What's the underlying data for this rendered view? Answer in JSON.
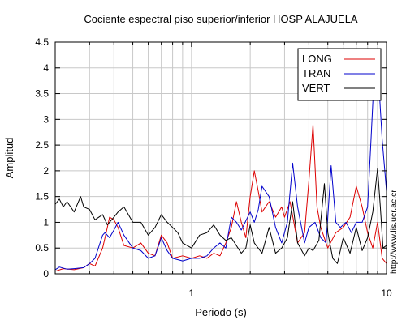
{
  "chart_data": {
    "type": "line",
    "title": "Cociente espectral piso superior/inferior  HOSP ALAJUELA",
    "xlabel": "Periodo (s)",
    "ylabel": "Amplitud",
    "x_scale": "log",
    "xlim": [
      0.2,
      10
    ],
    "ylim": [
      0,
      4.5
    ],
    "x_tick_labels": [
      {
        "value": 1,
        "label": "1"
      },
      {
        "value": 10,
        "label": "10"
      }
    ],
    "y_ticks": [
      "0",
      "0.5",
      "1",
      "1.5",
      "2",
      "2.5",
      "3",
      "3.5",
      "4",
      "4.5"
    ],
    "grid": true,
    "legend_position": "top-right",
    "watermark": "http://www.lis.ucr.ac.cr",
    "series": [
      {
        "name": "LONG",
        "color": "#dd0000",
        "points": [
          [
            0.2,
            0.05
          ],
          [
            0.22,
            0.1
          ],
          [
            0.25,
            0.08
          ],
          [
            0.28,
            0.12
          ],
          [
            0.3,
            0.2
          ],
          [
            0.32,
            0.15
          ],
          [
            0.35,
            0.5
          ],
          [
            0.37,
            0.9
          ],
          [
            0.38,
            1.1
          ],
          [
            0.4,
            1.05
          ],
          [
            0.42,
            0.9
          ],
          [
            0.45,
            0.55
          ],
          [
            0.5,
            0.5
          ],
          [
            0.55,
            0.6
          ],
          [
            0.6,
            0.4
          ],
          [
            0.65,
            0.35
          ],
          [
            0.7,
            0.75
          ],
          [
            0.75,
            0.6
          ],
          [
            0.8,
            0.3
          ],
          [
            0.9,
            0.35
          ],
          [
            1.0,
            0.3
          ],
          [
            1.1,
            0.35
          ],
          [
            1.2,
            0.3
          ],
          [
            1.3,
            0.4
          ],
          [
            1.4,
            0.35
          ],
          [
            1.5,
            0.6
          ],
          [
            1.6,
            0.9
          ],
          [
            1.7,
            1.4
          ],
          [
            1.8,
            1.0
          ],
          [
            1.9,
            0.7
          ],
          [
            2.0,
            1.5
          ],
          [
            2.1,
            2.0
          ],
          [
            2.2,
            1.6
          ],
          [
            2.3,
            1.2
          ],
          [
            2.5,
            1.4
          ],
          [
            2.7,
            1.1
          ],
          [
            2.9,
            1.3
          ],
          [
            3.0,
            1.1
          ],
          [
            3.2,
            1.4
          ],
          [
            3.5,
            0.6
          ],
          [
            3.8,
            0.8
          ],
          [
            4.0,
            1.8
          ],
          [
            4.2,
            2.9
          ],
          [
            4.4,
            1.3
          ],
          [
            4.6,
            0.9
          ],
          [
            5.0,
            0.5
          ],
          [
            5.5,
            0.8
          ],
          [
            6.0,
            0.9
          ],
          [
            6.5,
            1.1
          ],
          [
            7.0,
            1.7
          ],
          [
            7.5,
            1.3
          ],
          [
            8.0,
            0.8
          ],
          [
            8.5,
            0.5
          ],
          [
            9.0,
            1.0
          ],
          [
            9.5,
            0.3
          ],
          [
            10.0,
            0.2
          ]
        ]
      },
      {
        "name": "TRAN",
        "color": "#0000cc",
        "points": [
          [
            0.2,
            0.08
          ],
          [
            0.21,
            0.13
          ],
          [
            0.23,
            0.09
          ],
          [
            0.25,
            0.1
          ],
          [
            0.28,
            0.12
          ],
          [
            0.3,
            0.2
          ],
          [
            0.32,
            0.3
          ],
          [
            0.35,
            0.75
          ],
          [
            0.36,
            0.8
          ],
          [
            0.38,
            0.7
          ],
          [
            0.4,
            0.85
          ],
          [
            0.42,
            1.0
          ],
          [
            0.45,
            0.75
          ],
          [
            0.5,
            0.5
          ],
          [
            0.55,
            0.45
          ],
          [
            0.6,
            0.3
          ],
          [
            0.65,
            0.35
          ],
          [
            0.7,
            0.7
          ],
          [
            0.75,
            0.45
          ],
          [
            0.8,
            0.3
          ],
          [
            0.9,
            0.25
          ],
          [
            1.0,
            0.3
          ],
          [
            1.1,
            0.3
          ],
          [
            1.2,
            0.35
          ],
          [
            1.3,
            0.5
          ],
          [
            1.4,
            0.6
          ],
          [
            1.5,
            0.5
          ],
          [
            1.6,
            1.1
          ],
          [
            1.7,
            1.0
          ],
          [
            1.8,
            0.85
          ],
          [
            2.0,
            1.2
          ],
          [
            2.1,
            1.0
          ],
          [
            2.2,
            1.25
          ],
          [
            2.3,
            1.7
          ],
          [
            2.5,
            1.5
          ],
          [
            2.7,
            0.9
          ],
          [
            2.9,
            0.6
          ],
          [
            3.1,
            1.0
          ],
          [
            3.3,
            2.15
          ],
          [
            3.5,
            1.3
          ],
          [
            3.8,
            0.6
          ],
          [
            4.0,
            0.9
          ],
          [
            4.3,
            1.0
          ],
          [
            4.6,
            0.7
          ],
          [
            4.9,
            0.6
          ],
          [
            5.2,
            2.1
          ],
          [
            5.5,
            1.0
          ],
          [
            5.8,
            0.9
          ],
          [
            6.2,
            1.0
          ],
          [
            6.6,
            0.8
          ],
          [
            7.0,
            1.0
          ],
          [
            7.5,
            1.0
          ],
          [
            8.0,
            1.3
          ],
          [
            8.3,
            2.5
          ],
          [
            8.6,
            3.7
          ],
          [
            8.9,
            4.15
          ],
          [
            9.2,
            3.5
          ],
          [
            9.5,
            2.6
          ],
          [
            9.8,
            2.0
          ],
          [
            10.0,
            1.6
          ]
        ]
      },
      {
        "name": "VERT",
        "color": "#000000",
        "points": [
          [
            0.2,
            1.35
          ],
          [
            0.21,
            1.45
          ],
          [
            0.22,
            1.3
          ],
          [
            0.23,
            1.4
          ],
          [
            0.25,
            1.2
          ],
          [
            0.27,
            1.5
          ],
          [
            0.28,
            1.3
          ],
          [
            0.3,
            1.25
          ],
          [
            0.32,
            1.05
          ],
          [
            0.35,
            1.15
          ],
          [
            0.37,
            0.95
          ],
          [
            0.4,
            1.1
          ],
          [
            0.42,
            1.2
          ],
          [
            0.45,
            1.3
          ],
          [
            0.5,
            1.0
          ],
          [
            0.55,
            1.0
          ],
          [
            0.6,
            0.75
          ],
          [
            0.65,
            0.9
          ],
          [
            0.7,
            1.15
          ],
          [
            0.75,
            1.0
          ],
          [
            0.8,
            0.9
          ],
          [
            0.85,
            0.8
          ],
          [
            0.9,
            0.6
          ],
          [
            1.0,
            0.5
          ],
          [
            1.1,
            0.75
          ],
          [
            1.2,
            0.8
          ],
          [
            1.3,
            0.95
          ],
          [
            1.4,
            0.75
          ],
          [
            1.5,
            0.65
          ],
          [
            1.6,
            0.7
          ],
          [
            1.8,
            0.4
          ],
          [
            1.9,
            0.5
          ],
          [
            2.0,
            0.95
          ],
          [
            2.1,
            0.6
          ],
          [
            2.3,
            0.4
          ],
          [
            2.5,
            0.9
          ],
          [
            2.7,
            0.4
          ],
          [
            2.9,
            0.5
          ],
          [
            3.1,
            0.7
          ],
          [
            3.3,
            1.4
          ],
          [
            3.5,
            0.6
          ],
          [
            3.8,
            0.35
          ],
          [
            4.0,
            0.5
          ],
          [
            4.2,
            0.45
          ],
          [
            4.5,
            0.65
          ],
          [
            4.8,
            1.75
          ],
          [
            5.0,
            0.8
          ],
          [
            5.3,
            0.3
          ],
          [
            5.6,
            0.2
          ],
          [
            6.0,
            0.7
          ],
          [
            6.5,
            0.4
          ],
          [
            7.0,
            0.9
          ],
          [
            7.5,
            0.45
          ],
          [
            8.0,
            0.7
          ],
          [
            8.5,
            1.2
          ],
          [
            9.0,
            2.05
          ],
          [
            9.3,
            1.3
          ],
          [
            9.6,
            0.5
          ],
          [
            10.0,
            0.55
          ]
        ]
      }
    ]
  }
}
